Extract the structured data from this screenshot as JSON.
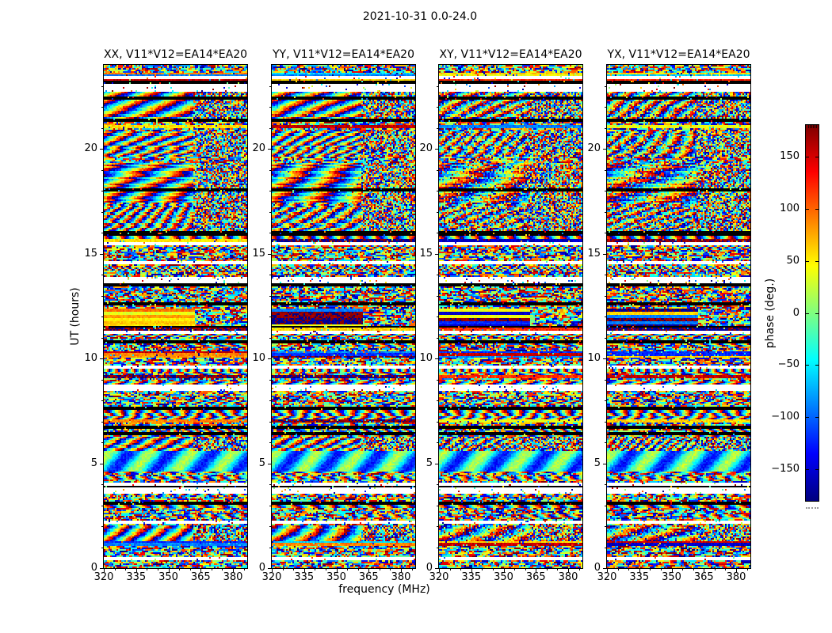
{
  "figure_title": "2021-10-31 0.0-24.0",
  "chart_data": {
    "type": "heatmap",
    "title": "2021-10-31 0.0-24.0",
    "xlabel": "frequency (MHz)",
    "ylabel": "UT (hours)",
    "x_range": [
      320,
      386.6
    ],
    "y_range": [
      0,
      24
    ],
    "x_ticks": [
      {
        "v": 320,
        "label": "320"
      },
      {
        "v": 335,
        "label": "335"
      },
      {
        "v": 350,
        "label": "350"
      },
      {
        "v": 365,
        "label": "365"
      },
      {
        "v": 380,
        "label": "380"
      }
    ],
    "x_minor_step": 5,
    "y_ticks": [
      {
        "v": 0,
        "label": "0"
      },
      {
        "v": 5,
        "label": "5"
      },
      {
        "v": 10,
        "label": "10"
      },
      {
        "v": 15,
        "label": "15"
      },
      {
        "v": 20,
        "label": "20"
      }
    ],
    "y_minor_step": 1,
    "grid": false,
    "panels": [
      {
        "pol": "XX",
        "label": "XX, V11*V12=EA14*EA20",
        "seed": 101,
        "fringe_contrast": 1.0,
        "accent_style": "warm"
      },
      {
        "pol": "YY",
        "label": "YY, V11*V12=EA14*EA20",
        "seed": 202,
        "fringe_contrast": 0.95,
        "accent_style": "full"
      },
      {
        "pol": "XY",
        "label": "XY, V11*V12=EA14*EA20",
        "seed": 303,
        "fringe_contrast": 0.5,
        "accent_style": "full"
      },
      {
        "pol": "YX",
        "label": "YX, V11*V12=EA14*EA20",
        "seed": 404,
        "fringe_contrast": 0.55,
        "accent_style": "full"
      }
    ],
    "colorbar": {
      "label": "phase (deg.)",
      "colormap": "jet",
      "range": [
        -180,
        180
      ],
      "ticks": [
        {
          "v": 150,
          "label": "150"
        },
        {
          "v": 100,
          "label": "100"
        },
        {
          "v": 50,
          "label": "50"
        },
        {
          "v": 0,
          "label": "0"
        },
        {
          "v": -50,
          "label": "−50"
        },
        {
          "v": -100,
          "label": "−100"
        },
        {
          "v": -150,
          "label": "−150"
        }
      ]
    },
    "time_bands": [
      {
        "from": 23.62,
        "to": 24.01,
        "mode": "noise"
      },
      {
        "from": 23.45,
        "to": 23.62,
        "mode": "flat"
      },
      {
        "from": 23.3,
        "to": 23.45,
        "mode": "white"
      },
      {
        "from": 22.92,
        "to": 23.3,
        "mode": "striped"
      },
      {
        "from": 22.72,
        "to": 22.92,
        "mode": "white"
      },
      {
        "from": 21.25,
        "to": 22.72,
        "mode": "fringe",
        "wf": 16,
        "wt": 10,
        "amp": 30
      },
      {
        "from": 20.85,
        "to": 21.25,
        "mode": "striped"
      },
      {
        "from": 19.6,
        "to": 20.85,
        "mode": "fringe",
        "wf": 12,
        "wt": 7,
        "amp": 35
      },
      {
        "from": 19.3,
        "to": 19.6,
        "mode": "noise"
      },
      {
        "from": 18.08,
        "to": 19.3,
        "mode": "fringe",
        "wf": 34,
        "wt": 16,
        "amp": 25,
        "strong": true
      },
      {
        "from": 17.97,
        "to": 18.08,
        "mode": "black"
      },
      {
        "from": 17.4,
        "to": 17.97,
        "mode": "fringe",
        "wf": 30,
        "wt": 14,
        "amp": 25,
        "strong": true
      },
      {
        "from": 16.05,
        "to": 17.4,
        "mode": "fringe",
        "wf": 10,
        "wt": 5,
        "amp": 55
      },
      {
        "from": 15.88,
        "to": 16.05,
        "mode": "black"
      },
      {
        "from": 13.85,
        "to": 15.88,
        "mode": "striped"
      },
      {
        "from": 13.55,
        "to": 13.85,
        "mode": "white",
        "dots": 0.06
      },
      {
        "from": 12.35,
        "to": 13.55,
        "mode": "striped"
      },
      {
        "from": 11.55,
        "to": 12.35,
        "mode": "flatwide"
      },
      {
        "from": 10.35,
        "to": 11.55,
        "mode": "striped"
      },
      {
        "from": 10.05,
        "to": 10.35,
        "mode": "flat"
      },
      {
        "from": 8.72,
        "to": 10.05,
        "mode": "striped"
      },
      {
        "from": 8.48,
        "to": 8.72,
        "mode": "white"
      },
      {
        "from": 6.25,
        "to": 8.48,
        "mode": "striped2"
      },
      {
        "from": 5.62,
        "to": 6.25,
        "mode": "fringe",
        "wf": 9,
        "wt": 6,
        "amp": 40
      },
      {
        "from": 4.6,
        "to": 5.62,
        "mode": "fringe",
        "wf": 26,
        "wt": 30,
        "amp": 18,
        "soft": true
      },
      {
        "from": 3.85,
        "to": 4.6,
        "mode": "striped"
      },
      {
        "from": 3.58,
        "to": 3.85,
        "mode": "white"
      },
      {
        "from": 2.05,
        "to": 3.58,
        "mode": "striped"
      },
      {
        "from": 1.32,
        "to": 2.05,
        "mode": "fringe",
        "wf": 20,
        "wt": 10,
        "amp": 30,
        "strong": true
      },
      {
        "from": 1.02,
        "to": 1.32,
        "mode": "flat"
      },
      {
        "from": 0.55,
        "to": 1.02,
        "mode": "noise"
      },
      {
        "from": 0.4,
        "to": 0.55,
        "mode": "white"
      },
      {
        "from": 0.0,
        "to": 0.4,
        "mode": "noise"
      }
    ],
    "colors": {
      "background": "#ffffff",
      "axis": "#000000",
      "missing_data": "#ffffff",
      "flagged_data": "#000000"
    }
  }
}
